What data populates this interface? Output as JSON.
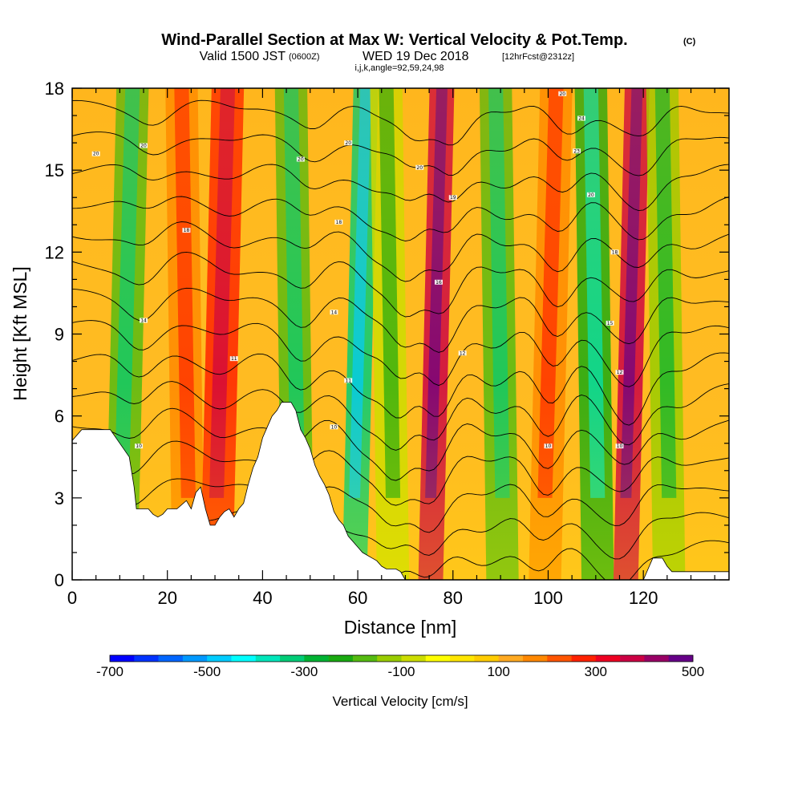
{
  "chart_data": {
    "type": "heatmap",
    "title": "Wind-Parallel Section at Max W: Vertical Velocity & Pot.Temp.",
    "title_unit": "(C)",
    "subtitle_prefix": "Valid 1500 JST",
    "subtitle_utc": "(0600Z)",
    "subtitle_date": "WED 19 Dec 2018",
    "subtitle_fcst": "[12hrFcst@2312z]",
    "index_line": "i,j,k,angle=92,59,24,98",
    "xlabel": "Distance [nm]",
    "ylabel": "Height [Kft MSL]",
    "xlim": [
      0,
      138
    ],
    "ylim": [
      0,
      18
    ],
    "x_ticks": [
      "0",
      "20",
      "40",
      "60",
      "80",
      "100",
      "120"
    ],
    "y_ticks": [
      "0",
      "3",
      "6",
      "9",
      "12",
      "15",
      "18"
    ],
    "grid": false,
    "colorbar": {
      "title": "Vertical Velocity [cm/s]",
      "labels": [
        "-700",
        "-500",
        "-300",
        "-100",
        "100",
        "300",
        "500"
      ],
      "colors": [
        "#0000ff",
        "#0033ff",
        "#0066ff",
        "#0099ff",
        "#00ccff",
        "#00ffff",
        "#00e6bb",
        "#00cc77",
        "#00b333",
        "#1aaa11",
        "#55bb11",
        "#99cc00",
        "#ccdd00",
        "#ffff00",
        "#ffe600",
        "#ffcc00",
        "#ffaa22",
        "#ff8800",
        "#ff5500",
        "#ff2200",
        "#ee0022",
        "#cc0044",
        "#990066",
        "#660088"
      ]
    },
    "terrain_kft": [
      [
        0,
        5.1
      ],
      [
        2,
        5.5
      ],
      [
        8,
        5.5
      ],
      [
        10,
        5.0
      ],
      [
        12,
        4.5
      ],
      [
        13,
        3.4
      ],
      [
        13.5,
        2.6
      ],
      [
        16,
        2.6
      ],
      [
        17,
        2.4
      ],
      [
        18,
        2.3
      ],
      [
        19,
        2.4
      ],
      [
        20,
        2.6
      ],
      [
        22,
        2.6
      ],
      [
        24,
        2.9
      ],
      [
        25,
        2.6
      ],
      [
        26,
        3.2
      ],
      [
        27,
        3.4
      ],
      [
        28,
        2.6
      ],
      [
        29,
        2.0
      ],
      [
        30,
        2.0
      ],
      [
        31,
        2.3
      ],
      [
        32,
        2.5
      ],
      [
        33,
        2.6
      ],
      [
        34,
        2.3
      ],
      [
        35,
        2.6
      ],
      [
        36,
        2.8
      ],
      [
        37,
        3.5
      ],
      [
        38,
        4.1
      ],
      [
        39,
        4.5
      ],
      [
        40,
        5.2
      ],
      [
        41,
        5.6
      ],
      [
        42,
        6.0
      ],
      [
        43,
        6.2
      ],
      [
        44,
        6.5
      ],
      [
        45,
        6.5
      ],
      [
        46,
        6.5
      ],
      [
        47,
        6.2
      ],
      [
        48,
        5.5
      ],
      [
        49,
        5.2
      ],
      [
        50,
        4.8
      ],
      [
        51,
        4.2
      ],
      [
        52,
        3.8
      ],
      [
        53,
        3.5
      ],
      [
        54,
        3.1
      ],
      [
        55,
        2.5
      ],
      [
        56,
        2.2
      ],
      [
        57,
        2.0
      ],
      [
        58,
        1.6
      ],
      [
        59,
        1.4
      ],
      [
        60,
        1.2
      ],
      [
        61,
        1.0
      ],
      [
        62,
        0.9
      ],
      [
        63,
        0.8
      ],
      [
        64,
        0.7
      ],
      [
        65,
        0.5
      ],
      [
        66,
        0.4
      ],
      [
        68,
        0.4
      ],
      [
        69,
        0.3
      ],
      [
        70,
        0.0
      ],
      [
        120,
        0.0
      ],
      [
        121,
        0.4
      ],
      [
        122,
        0.8
      ],
      [
        124,
        0.8
      ],
      [
        125,
        0.5
      ],
      [
        126,
        0.3
      ],
      [
        138,
        0.3
      ]
    ],
    "velocity_bands": [
      {
        "x": 11,
        "w_cms": -200
      },
      {
        "x": 24,
        "w_cms": 150
      },
      {
        "x": 31,
        "w_cms": 250
      },
      {
        "x": 47,
        "w_cms": -200
      },
      {
        "x": 60,
        "w_cms": -350
      },
      {
        "x": 67,
        "w_cms": -100
      },
      {
        "x": 76,
        "w_cms": 350
      },
      {
        "x": 90,
        "w_cms": -200
      },
      {
        "x": 100,
        "w_cms": 150
      },
      {
        "x": 110,
        "w_cms": -250
      },
      {
        "x": 117,
        "w_cms": 350
      },
      {
        "x": 125,
        "w_cms": -150
      }
    ],
    "theta_labels": [
      {
        "text": "10",
        "x": 14,
        "y": 4.9
      },
      {
        "text": "10",
        "x": 100,
        "y": 4.9
      },
      {
        "text": "10",
        "x": 115,
        "y": 4.9
      },
      {
        "text": "10",
        "x": 55,
        "y": 5.6
      },
      {
        "text": "11",
        "x": 58,
        "y": 7.3
      },
      {
        "text": "11",
        "x": 34,
        "y": 8.1
      },
      {
        "text": "12",
        "x": 82,
        "y": 8.3
      },
      {
        "text": "12",
        "x": 115,
        "y": 7.6
      },
      {
        "text": "14",
        "x": 15,
        "y": 9.5
      },
      {
        "text": "14",
        "x": 55,
        "y": 9.8
      },
      {
        "text": "15",
        "x": 113,
        "y": 9.4
      },
      {
        "text": "16",
        "x": 77,
        "y": 10.9
      },
      {
        "text": "18",
        "x": 24,
        "y": 12.8
      },
      {
        "text": "18",
        "x": 56,
        "y": 13.1
      },
      {
        "text": "18",
        "x": 114,
        "y": 12.0
      },
      {
        "text": "19",
        "x": 80,
        "y": 14.0
      },
      {
        "text": "20",
        "x": 109,
        "y": 14.1
      },
      {
        "text": "20",
        "x": 73,
        "y": 15.1
      },
      {
        "text": "20",
        "x": 5,
        "y": 15.6
      },
      {
        "text": "20",
        "x": 15,
        "y": 15.9
      },
      {
        "text": "20",
        "x": 48,
        "y": 15.4
      },
      {
        "text": "20",
        "x": 58,
        "y": 16.0
      },
      {
        "text": "23",
        "x": 106,
        "y": 15.7
      },
      {
        "text": "24",
        "x": 107,
        "y": 16.9
      },
      {
        "text": "20",
        "x": 103,
        "y": 17.8
      }
    ]
  }
}
